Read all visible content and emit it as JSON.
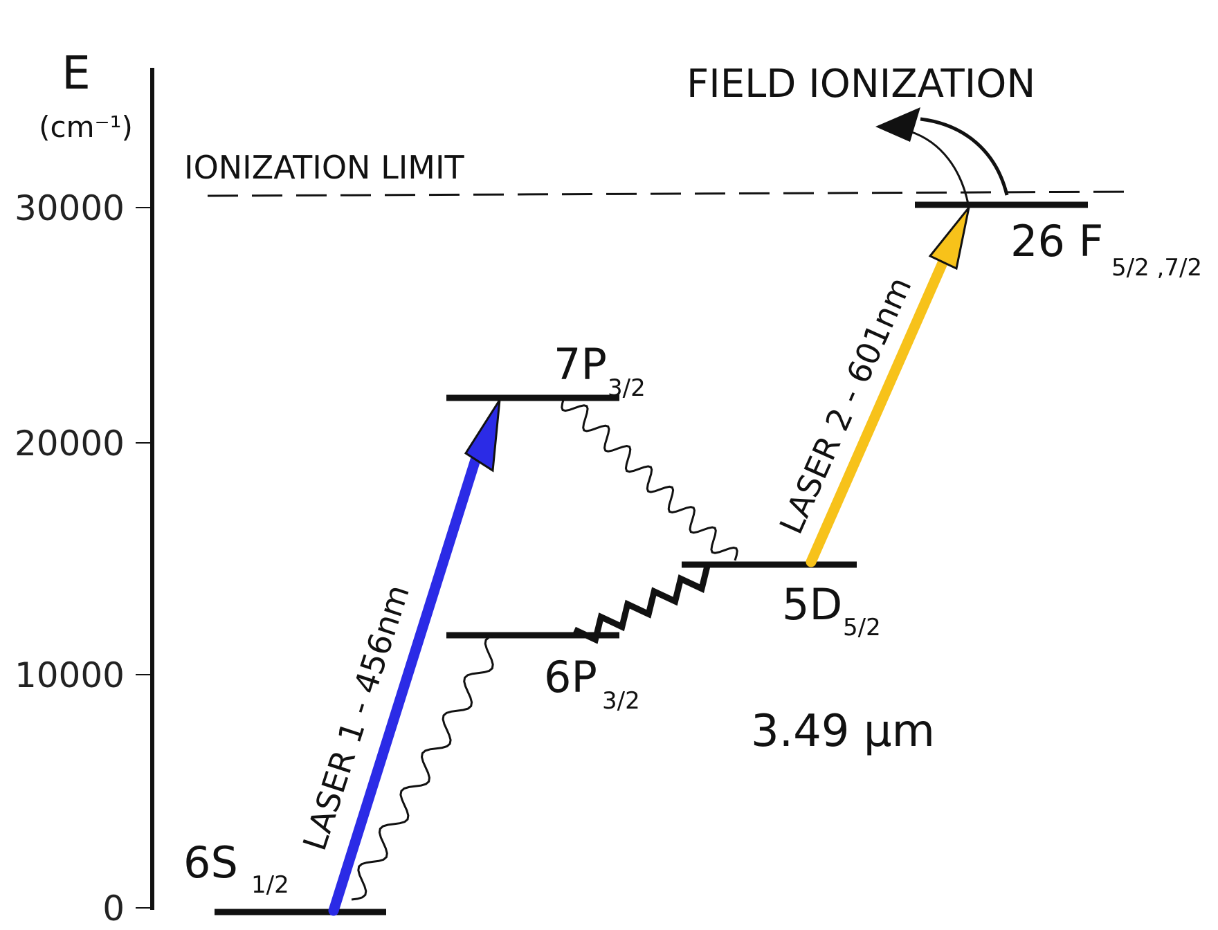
{
  "axis": {
    "label": "E",
    "unit": "(cm⁻¹)",
    "ticks": [
      "30000",
      "20000",
      "10000",
      "0"
    ]
  },
  "ionization_limit": "IONIZATION LIMIT",
  "field_ionization": "FIELD IONIZATION",
  "states": {
    "s6": {
      "main": "6S",
      "sub": "1/2"
    },
    "p6": {
      "main": "6P",
      "sub": "3/2"
    },
    "p7": {
      "main": "7P",
      "sub": "3/2"
    },
    "d5": {
      "main": "5D",
      "sub": "5/2"
    },
    "f26": {
      "main": "26 F",
      "sub": "5/2 ,7/2"
    }
  },
  "lasers": {
    "laser1": "LASER 1 - 456nm",
    "laser2": "LASER 2 - 601nm",
    "laser1_color": "#2b2be6",
    "laser2_color": "#f7c21a"
  },
  "ir_transition": "3.49 μm"
}
